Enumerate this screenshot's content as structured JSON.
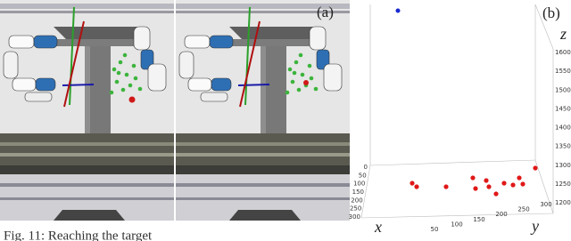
{
  "panel_a": {
    "label": "(a)"
  },
  "panel_b": {
    "label": "(b)",
    "x_label": "x",
    "y_label": "y",
    "z_label": "z",
    "x_ticks": [
      0,
      50,
      100,
      150,
      200,
      250,
      300
    ],
    "y_ticks": [
      50,
      100,
      150,
      200,
      250,
      300
    ],
    "z_ticks": [
      1200,
      1250,
      1300,
      1350,
      1400,
      1450,
      1500,
      1550,
      1600
    ]
  },
  "caption": "Fig. 11: Reaching the target"
}
